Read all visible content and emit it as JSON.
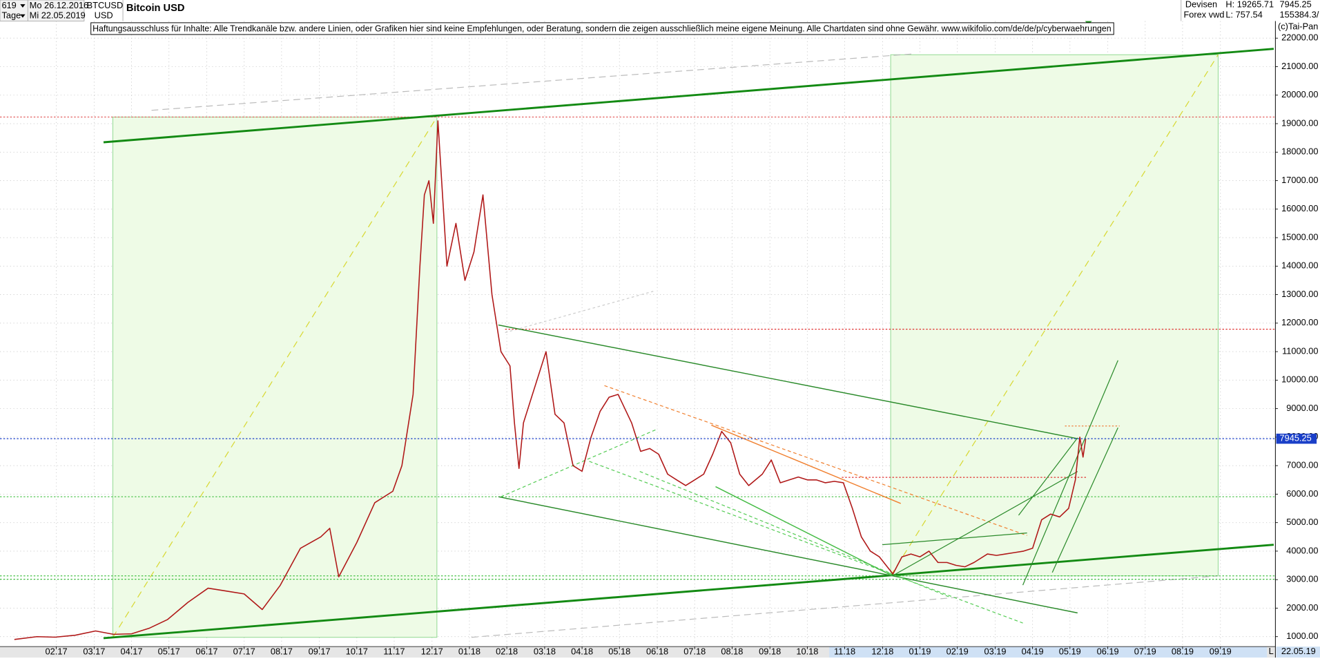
{
  "header": {
    "count": "619",
    "start": "Mo 26.12.2016",
    "period": "Tage",
    "end": "Mi 22.05.2019",
    "symbol": "BTCUSD",
    "currency": "USD",
    "exchange": "Devisen",
    "source": "Forex vwd",
    "high": "H: 19265.71",
    "low": "L: 757.54",
    "volume": "155384.3/",
    "copyright": "(c)Tai-Pan",
    "disclaimer": "Haftungsausschluss für Inhalte: Alle Trendkanäle bzw. andere Linien, oder Grafiken hier sind keine Empfehlungen, oder Beratung, sondern die zeigen ausschließlich meine eigene Meinung. Alle Chartdaten sind ohne Gewähr.  www.wikifolio.com/de/de/p/cyberwaehrungen",
    "last_date": "22.05.19",
    "scale_mode": "L"
  },
  "chart_data": {
    "type": "line",
    "title": "Bitcoin USD",
    "color": "#b01818",
    "current_price": 7945.25,
    "current_color": "#1a3fc8",
    "grid": true,
    "x": [
      2016.99,
      2017.04,
      2017.08,
      2017.125,
      2017.17,
      2017.21,
      2017.25,
      2017.29,
      2017.33,
      2017.375,
      2017.42,
      2017.46,
      2017.5,
      2017.54,
      2017.58,
      2017.625,
      2017.67,
      2017.69,
      2017.71,
      2017.75,
      2017.79,
      2017.83,
      2017.85,
      2017.875,
      2017.89,
      2017.9,
      2017.91,
      2017.92,
      2017.93,
      2017.95,
      2017.97,
      2017.99,
      2018.01,
      2018.03,
      2018.05,
      2018.07,
      2018.09,
      2018.1,
      2018.11,
      2018.12,
      2018.14,
      2018.17,
      2018.19,
      2018.21,
      2018.23,
      2018.25,
      2018.27,
      2018.29,
      2018.31,
      2018.33,
      2018.36,
      2018.38,
      2018.4,
      2018.42,
      2018.44,
      2018.46,
      2018.48,
      2018.5,
      2018.52,
      2018.54,
      2018.56,
      2018.58,
      2018.6,
      2018.62,
      2018.65,
      2018.67,
      2018.69,
      2018.71,
      2018.73,
      2018.75,
      2018.77,
      2018.79,
      2018.81,
      2018.83,
      2018.85,
      2018.87,
      2018.89,
      2018.91,
      2018.94,
      2018.96,
      2018.98,
      2019.0,
      2019.02,
      2019.04,
      2019.06,
      2019.08,
      2019.1,
      2019.12,
      2019.15,
      2019.17,
      2019.19,
      2019.21,
      2019.23,
      2019.25,
      2019.27,
      2019.29,
      2019.31,
      2019.33,
      2019.345,
      2019.355,
      2019.362,
      2019.368
    ],
    "values": [
      900,
      1000,
      980,
      1050,
      1200,
      1080,
      1100,
      1300,
      1600,
      2200,
      2700,
      2600,
      2500,
      1950,
      2800,
      4100,
      4500,
      4800,
      3100,
      4300,
      5700,
      6100,
      7000,
      9500,
      14000,
      16500,
      17000,
      15500,
      19100,
      14000,
      15500,
      13500,
      14500,
      16500,
      13000,
      11000,
      10500,
      8500,
      6900,
      8500,
      9500,
      11000,
      8800,
      8500,
      7000,
      6800,
      8000,
      8900,
      9400,
      9500,
      8500,
      7500,
      7600,
      7400,
      6700,
      6500,
      6300,
      6500,
      6700,
      7400,
      8200,
      7800,
      6700,
      6300,
      6700,
      7200,
      6400,
      6500,
      6600,
      6500,
      6500,
      6400,
      6450,
      6400,
      5500,
      4500,
      4000,
      3800,
      3200,
      3800,
      3900,
      3800,
      4000,
      3600,
      3600,
      3500,
      3450,
      3600,
      3900,
      3850,
      3900,
      3950,
      4000,
      4100,
      5100,
      5300,
      5200,
      5500,
      6500,
      8000,
      7300,
      7945.25
    ],
    "xlim": [
      2016.958,
      2019.789
    ],
    "ylim": [
      650,
      22600
    ],
    "xticks": [
      {
        "value": 2017.083,
        "label": "02.17"
      },
      {
        "value": 2017.167,
        "label": "03.17"
      },
      {
        "value": 2017.25,
        "label": "04.17"
      },
      {
        "value": 2017.333,
        "label": "05.17"
      },
      {
        "value": 2017.417,
        "label": "06.17"
      },
      {
        "value": 2017.5,
        "label": "07.17"
      },
      {
        "value": 2017.583,
        "label": "08.17"
      },
      {
        "value": 2017.667,
        "label": "09.17"
      },
      {
        "value": 2017.75,
        "label": "10.17"
      },
      {
        "value": 2017.833,
        "label": "11.17"
      },
      {
        "value": 2017.917,
        "label": "12.17"
      },
      {
        "value": 2018.0,
        "label": "01.18"
      },
      {
        "value": 2018.083,
        "label": "02.18"
      },
      {
        "value": 2018.167,
        "label": "03.18"
      },
      {
        "value": 2018.25,
        "label": "04.18"
      },
      {
        "value": 2018.333,
        "label": "05.18"
      },
      {
        "value": 2018.417,
        "label": "06.18"
      },
      {
        "value": 2018.5,
        "label": "07.18"
      },
      {
        "value": 2018.583,
        "label": "08.18"
      },
      {
        "value": 2018.667,
        "label": "09.18"
      },
      {
        "value": 2018.75,
        "label": "10.18"
      },
      {
        "value": 2018.833,
        "label": "11.18"
      },
      {
        "value": 2018.917,
        "label": "12.18"
      },
      {
        "value": 2019.0,
        "label": "01.19"
      },
      {
        "value": 2019.083,
        "label": "02.19"
      },
      {
        "value": 2019.167,
        "label": "03.19"
      },
      {
        "value": 2019.25,
        "label": "04.19"
      },
      {
        "value": 2019.333,
        "label": "05.19"
      },
      {
        "value": 2019.417,
        "label": "06.19"
      },
      {
        "value": 2019.5,
        "label": "07.19"
      },
      {
        "value": 2019.583,
        "label": "08.19"
      },
      {
        "value": 2019.667,
        "label": "09.19"
      }
    ],
    "yticks": [
      {
        "value": 1000,
        "label": "1000.00"
      },
      {
        "value": 2000,
        "label": "2000.00"
      },
      {
        "value": 3000,
        "label": "3000.00"
      },
      {
        "value": 4000,
        "label": "4000.00"
      },
      {
        "value": 5000,
        "label": "5000.00"
      },
      {
        "value": 6000,
        "label": "6000.00"
      },
      {
        "value": 7000,
        "label": "7000.00"
      },
      {
        "value": 8000,
        "label": "8000.00"
      },
      {
        "value": 9000,
        "label": "9000.00"
      },
      {
        "value": 10000,
        "label": "10000.00"
      },
      {
        "value": 11000,
        "label": "11000.00"
      },
      {
        "value": 12000,
        "label": "12000.00"
      },
      {
        "value": 13000,
        "label": "13000.00"
      },
      {
        "value": 14000,
        "label": "14000.00"
      },
      {
        "value": 15000,
        "label": "15000.00"
      },
      {
        "value": 16000,
        "label": "16000.00"
      },
      {
        "value": 17000,
        "label": "17000.00"
      },
      {
        "value": 18000,
        "label": "18000.00"
      },
      {
        "value": 19000,
        "label": "19000.00"
      },
      {
        "value": 20000,
        "label": "20000.00"
      },
      {
        "value": 21000,
        "label": "21000.00"
      },
      {
        "value": 22000,
        "label": "22000.00"
      }
    ]
  }
}
